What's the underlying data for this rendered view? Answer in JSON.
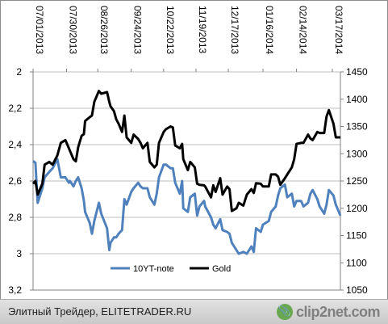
{
  "chart_data": {
    "type": "line",
    "x_ticks": [
      "07/01/2013",
      "07/30/2013",
      "08/26/2013",
      "09/24/2013",
      "10/22/2013",
      "11/19/2013",
      "12/17/2013",
      "01/16/2014",
      "02/14/2014",
      "03/17/2014"
    ],
    "x_range": [
      "07/01/2013",
      "03/24/2014"
    ],
    "y_left": {
      "ticks": [
        "2",
        "2,2",
        "2,4",
        "2,6",
        "2,8",
        "3",
        "3,2"
      ],
      "range": [
        2.0,
        3.2
      ],
      "inverted": true
    },
    "y_right": {
      "ticks": [
        "1450",
        "1400",
        "1350",
        "1300",
        "1250",
        "1200",
        "1150",
        "1100",
        "1050"
      ],
      "range": [
        1050,
        1450
      ]
    },
    "grid": "horizontal",
    "legend_position": "bottom-inside",
    "series": [
      {
        "name": "10YT-note",
        "axis": "left",
        "color": "#4f81bd",
        "points": [
          [
            "07/01/2013",
            2.49
          ],
          [
            "07/03/2013",
            2.5
          ],
          [
            "07/05/2013",
            2.72
          ],
          [
            "07/09/2013",
            2.64
          ],
          [
            "07/11/2013",
            2.58
          ],
          [
            "07/15/2013",
            2.55
          ],
          [
            "07/18/2013",
            2.53
          ],
          [
            "07/22/2013",
            2.48
          ],
          [
            "07/25/2013",
            2.58
          ],
          [
            "07/29/2013",
            2.58
          ],
          [
            "08/01/2013",
            2.61
          ],
          [
            "08/02/2013",
            2.6
          ],
          [
            "08/05/2013",
            2.63
          ],
          [
            "08/07/2013",
            2.6
          ],
          [
            "08/09/2013",
            2.58
          ],
          [
            "08/12/2013",
            2.64
          ],
          [
            "08/14/2013",
            2.71
          ],
          [
            "08/15/2013",
            2.77
          ],
          [
            "08/19/2013",
            2.83
          ],
          [
            "08/21/2013",
            2.89
          ],
          [
            "08/23/2013",
            2.82
          ],
          [
            "08/27/2013",
            2.72
          ],
          [
            "08/29/2013",
            2.78
          ],
          [
            "09/03/2013",
            2.86
          ],
          [
            "09/05/2013",
            2.98
          ],
          [
            "09/06/2013",
            2.94
          ],
          [
            "09/09/2013",
            2.91
          ],
          [
            "09/11/2013",
            2.91
          ],
          [
            "09/13/2013",
            2.89
          ],
          [
            "09/16/2013",
            2.87
          ],
          [
            "09/18/2013",
            2.7
          ],
          [
            "09/20/2013",
            2.73
          ],
          [
            "09/24/2013",
            2.66
          ],
          [
            "09/26/2013",
            2.64
          ],
          [
            "09/30/2013",
            2.61
          ],
          [
            "10/02/2013",
            2.63
          ],
          [
            "10/04/2013",
            2.64
          ],
          [
            "10/08/2013",
            2.64
          ],
          [
            "10/10/2013",
            2.69
          ],
          [
            "10/14/2013",
            2.73
          ],
          [
            "10/16/2013",
            2.67
          ],
          [
            "10/18/2013",
            2.58
          ],
          [
            "10/22/2013",
            2.51
          ],
          [
            "10/24/2013",
            2.51
          ],
          [
            "10/28/2013",
            2.53
          ],
          [
            "10/30/2013",
            2.53
          ],
          [
            "11/01/2013",
            2.61
          ],
          [
            "11/05/2013",
            2.67
          ],
          [
            "11/07/2013",
            2.6
          ],
          [
            "11/08/2013",
            2.75
          ],
          [
            "11/12/2013",
            2.77
          ],
          [
            "11/14/2013",
            2.69
          ],
          [
            "11/18/2013",
            2.67
          ],
          [
            "11/20/2013",
            2.79
          ],
          [
            "11/22/2013",
            2.74
          ],
          [
            "11/26/2013",
            2.71
          ],
          [
            "11/27/2013",
            2.74
          ],
          [
            "12/02/2013",
            2.8
          ],
          [
            "12/04/2013",
            2.84
          ],
          [
            "12/06/2013",
            2.86
          ],
          [
            "12/10/2013",
            2.81
          ],
          [
            "12/12/2013",
            2.87
          ],
          [
            "12/16/2013",
            2.88
          ],
          [
            "12/18/2013",
            2.89
          ],
          [
            "12/20/2013",
            2.94
          ],
          [
            "12/24/2013",
            2.98
          ],
          [
            "12/26/2013",
            3.0
          ],
          [
            "12/30/2013",
            2.99
          ],
          [
            "01/02/2014",
            3.0
          ],
          [
            "01/06/2014",
            2.96
          ],
          [
            "01/08/2014",
            2.99
          ],
          [
            "01/10/2014",
            2.86
          ],
          [
            "01/14/2014",
            2.88
          ],
          [
            "01/16/2014",
            2.84
          ],
          [
            "01/21/2014",
            2.82
          ],
          [
            "01/23/2014",
            2.77
          ],
          [
            "01/27/2014",
            2.74
          ],
          [
            "01/29/2014",
            2.68
          ],
          [
            "01/31/2014",
            2.64
          ],
          [
            "02/04/2014",
            2.62
          ],
          [
            "02/06/2014",
            2.69
          ],
          [
            "02/10/2014",
            2.67
          ],
          [
            "02/12/2014",
            2.74
          ],
          [
            "02/14/2014",
            2.71
          ],
          [
            "02/18/2014",
            2.71
          ],
          [
            "02/20/2014",
            2.74
          ],
          [
            "02/24/2014",
            2.72
          ],
          [
            "02/26/2014",
            2.67
          ],
          [
            "02/28/2014",
            2.65
          ],
          [
            "03/04/2014",
            2.7
          ],
          [
            "03/06/2014",
            2.74
          ],
          [
            "03/10/2014",
            2.78
          ],
          [
            "03/12/2014",
            2.73
          ],
          [
            "03/14/2014",
            2.65
          ],
          [
            "03/18/2014",
            2.68
          ],
          [
            "03/20/2014",
            2.73
          ],
          [
            "03/24/2014",
            2.79
          ]
        ]
      },
      {
        "name": "Gold",
        "axis": "right",
        "color": "#000000",
        "points": [
          [
            "07/01/2013",
            1245
          ],
          [
            "07/03/2013",
            1250
          ],
          [
            "07/05/2013",
            1225
          ],
          [
            "07/09/2013",
            1245
          ],
          [
            "07/11/2013",
            1280
          ],
          [
            "07/15/2013",
            1285
          ],
          [
            "07/18/2013",
            1280
          ],
          [
            "07/22/2013",
            1297
          ],
          [
            "07/25/2013",
            1320
          ],
          [
            "07/29/2013",
            1325
          ],
          [
            "08/01/2013",
            1310
          ],
          [
            "08/02/2013",
            1305
          ],
          [
            "08/05/2013",
            1290
          ],
          [
            "08/07/2013",
            1286
          ],
          [
            "08/09/2013",
            1312
          ],
          [
            "08/12/2013",
            1333
          ],
          [
            "08/14/2013",
            1336
          ],
          [
            "08/15/2013",
            1360
          ],
          [
            "08/19/2013",
            1367
          ],
          [
            "08/21/2013",
            1370
          ],
          [
            "08/23/2013",
            1395
          ],
          [
            "08/27/2013",
            1415
          ],
          [
            "08/29/2013",
            1410
          ],
          [
            "09/03/2013",
            1413
          ],
          [
            "09/05/2013",
            1395
          ],
          [
            "09/06/2013",
            1387
          ],
          [
            "09/09/2013",
            1378
          ],
          [
            "09/11/2013",
            1363
          ],
          [
            "09/13/2013",
            1355
          ],
          [
            "09/16/2013",
            1340
          ],
          [
            "09/18/2013",
            1370
          ],
          [
            "09/20/2013",
            1330
          ],
          [
            "09/24/2013",
            1320
          ],
          [
            "09/26/2013",
            1335
          ],
          [
            "09/30/2013",
            1327
          ],
          [
            "10/02/2013",
            1320
          ],
          [
            "10/04/2013",
            1310
          ],
          [
            "10/08/2013",
            1320
          ],
          [
            "10/10/2013",
            1285
          ],
          [
            "10/14/2013",
            1275
          ],
          [
            "10/16/2013",
            1280
          ],
          [
            "10/18/2013",
            1320
          ],
          [
            "10/22/2013",
            1340
          ],
          [
            "10/24/2013",
            1345
          ],
          [
            "10/28/2013",
            1350
          ],
          [
            "10/30/2013",
            1348
          ],
          [
            "11/01/2013",
            1315
          ],
          [
            "11/05/2013",
            1310
          ],
          [
            "11/07/2013",
            1318
          ],
          [
            "11/08/2013",
            1290
          ],
          [
            "11/12/2013",
            1270
          ],
          [
            "11/14/2013",
            1285
          ],
          [
            "11/18/2013",
            1275
          ],
          [
            "11/20/2013",
            1245
          ],
          [
            "11/22/2013",
            1243
          ],
          [
            "11/26/2013",
            1242
          ],
          [
            "11/27/2013",
            1240
          ],
          [
            "12/02/2013",
            1220
          ],
          [
            "12/04/2013",
            1242
          ],
          [
            "12/06/2013",
            1230
          ],
          [
            "12/10/2013",
            1255
          ],
          [
            "12/12/2013",
            1225
          ],
          [
            "12/16/2013",
            1240
          ],
          [
            "12/18/2013",
            1235
          ],
          [
            "12/20/2013",
            1195
          ],
          [
            "12/24/2013",
            1200
          ],
          [
            "12/26/2013",
            1210
          ],
          [
            "12/30/2013",
            1205
          ],
          [
            "01/02/2014",
            1225
          ],
          [
            "01/06/2014",
            1235
          ],
          [
            "01/08/2014",
            1228
          ],
          [
            "01/10/2014",
            1246
          ],
          [
            "01/14/2014",
            1245
          ],
          [
            "01/16/2014",
            1240
          ],
          [
            "01/21/2014",
            1240
          ],
          [
            "01/23/2014",
            1262
          ],
          [
            "01/27/2014",
            1262
          ],
          [
            "01/29/2014",
            1258
          ],
          [
            "01/31/2014",
            1243
          ],
          [
            "02/04/2014",
            1255
          ],
          [
            "02/06/2014",
            1262
          ],
          [
            "02/10/2014",
            1275
          ],
          [
            "02/12/2014",
            1290
          ],
          [
            "02/14/2014",
            1318
          ],
          [
            "02/18/2014",
            1320
          ],
          [
            "02/20/2014",
            1320
          ],
          [
            "02/24/2014",
            1335
          ],
          [
            "02/26/2014",
            1328
          ],
          [
            "02/28/2014",
            1325
          ],
          [
            "03/04/2014",
            1340
          ],
          [
            "03/06/2014",
            1338
          ],
          [
            "03/10/2014",
            1338
          ],
          [
            "03/12/2014",
            1368
          ],
          [
            "03/14/2014",
            1380
          ],
          [
            "03/18/2014",
            1355
          ],
          [
            "03/20/2014",
            1330
          ],
          [
            "03/24/2014",
            1330
          ]
        ]
      }
    ]
  },
  "footer": {
    "caption": "Элитный Трейдер, ELITETRADER.RU",
    "brand": "clip2net.com",
    "brand_icon": "paperclip-icon"
  }
}
